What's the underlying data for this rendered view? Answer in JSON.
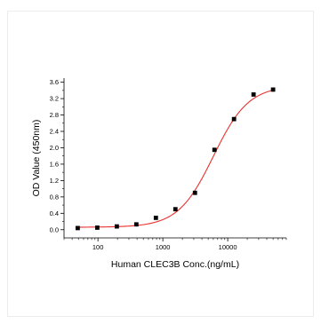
{
  "chart_data": {
    "type": "scatter",
    "title": "",
    "xlabel": "Human CLEC3B Conc.(ng/mL)",
    "ylabel": "OD Value (450nm)",
    "x_scale": "log",
    "xlim": [
      30,
      80000
    ],
    "ylim": [
      -0.2,
      3.7
    ],
    "x_ticks": [
      100,
      1000,
      10000
    ],
    "x_tick_labels": [
      "100",
      "1000",
      "10000"
    ],
    "y_ticks": [
      0.0,
      0.4,
      0.8,
      1.2,
      1.6,
      2.0,
      2.4,
      2.8,
      3.2,
      3.6
    ],
    "y_tick_labels": [
      "0.0",
      "0.4",
      "0.8",
      "1.2",
      "1.6",
      "2.0",
      "2.4",
      "2.8",
      "3.2",
      "3.6"
    ],
    "grid": false,
    "legend": "none",
    "series": [
      {
        "kind": "points",
        "marker": "square",
        "color": "#000000",
        "x": [
          48.8,
          97.7,
          195.3,
          390.6,
          781.3,
          1562.5,
          3125,
          6250,
          12500,
          25000,
          50000
        ],
        "y": [
          0.04,
          0.05,
          0.08,
          0.13,
          0.29,
          0.5,
          0.9,
          1.95,
          2.7,
          3.3,
          3.42
        ]
      },
      {
        "kind": "fit",
        "model": "4PL",
        "color": "#e8302e",
        "params": {
          "bottom": 0.06,
          "top": 3.52,
          "ec50": 6000,
          "hill": 1.6
        }
      }
    ]
  }
}
